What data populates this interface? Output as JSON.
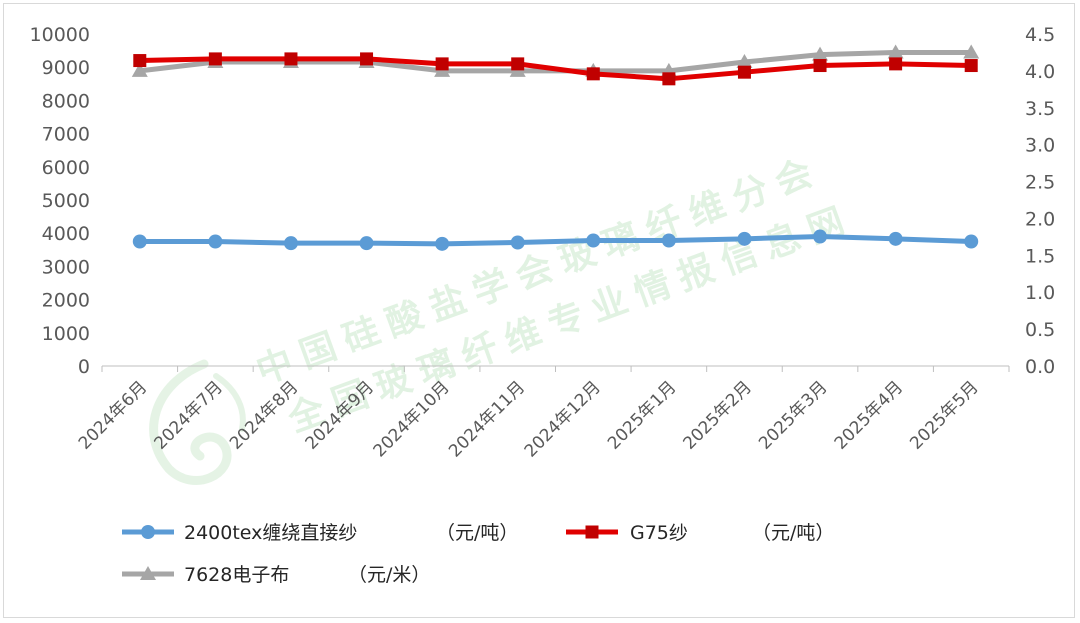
{
  "chart_data": {
    "type": "line",
    "categories": [
      "2024年6月",
      "2024年7月",
      "2024年8月",
      "2024年9月",
      "2024年10月",
      "2024年11月",
      "2024年12月",
      "2025年1月",
      "2025年2月",
      "2025年3月",
      "2025年4月",
      "2025年5月"
    ],
    "y_left": {
      "min": 0,
      "max": 10000,
      "step": 1000,
      "ticks": [
        "0",
        "1000",
        "2000",
        "3000",
        "4000",
        "5000",
        "6000",
        "7000",
        "8000",
        "9000",
        "10000"
      ]
    },
    "y_right": {
      "min": 0,
      "max": 4.5,
      "step": 0.5,
      "ticks": [
        "0.0",
        "0.5",
        "1.0",
        "1.5",
        "2.0",
        "2.5",
        "3.0",
        "3.5",
        "4.0",
        "4.5"
      ]
    },
    "series": [
      {
        "name": "2400tex缠绕直接纱",
        "unit": "（元/吨）",
        "axis": "left",
        "color": "#5b9bd5",
        "marker": "circle",
        "values": [
          3750,
          3750,
          3700,
          3700,
          3680,
          3720,
          3780,
          3780,
          3830,
          3900,
          3830,
          3750
        ]
      },
      {
        "name": "G75纱",
        "unit": "（元/吨）",
        "axis": "left",
        "color": "#e00000",
        "marker": "square",
        "values": [
          9200,
          9250,
          9250,
          9250,
          9100,
          9100,
          8800,
          8650,
          8850,
          9050,
          9100,
          9050
        ]
      },
      {
        "name": "7628电子布",
        "unit": "（元/米）",
        "axis": "right",
        "color": "#a6a6a6",
        "marker": "triangle",
        "values": [
          4.0,
          4.12,
          4.12,
          4.12,
          4.0,
          4.0,
          4.0,
          4.0,
          4.12,
          4.22,
          4.25,
          4.25
        ]
      }
    ],
    "legend_position": "bottom",
    "grid": false
  },
  "watermark": {
    "line1": "中国硅酸盐学会玻璃纤维分会",
    "line2": "全国玻璃纤维专业情报信息网"
  }
}
